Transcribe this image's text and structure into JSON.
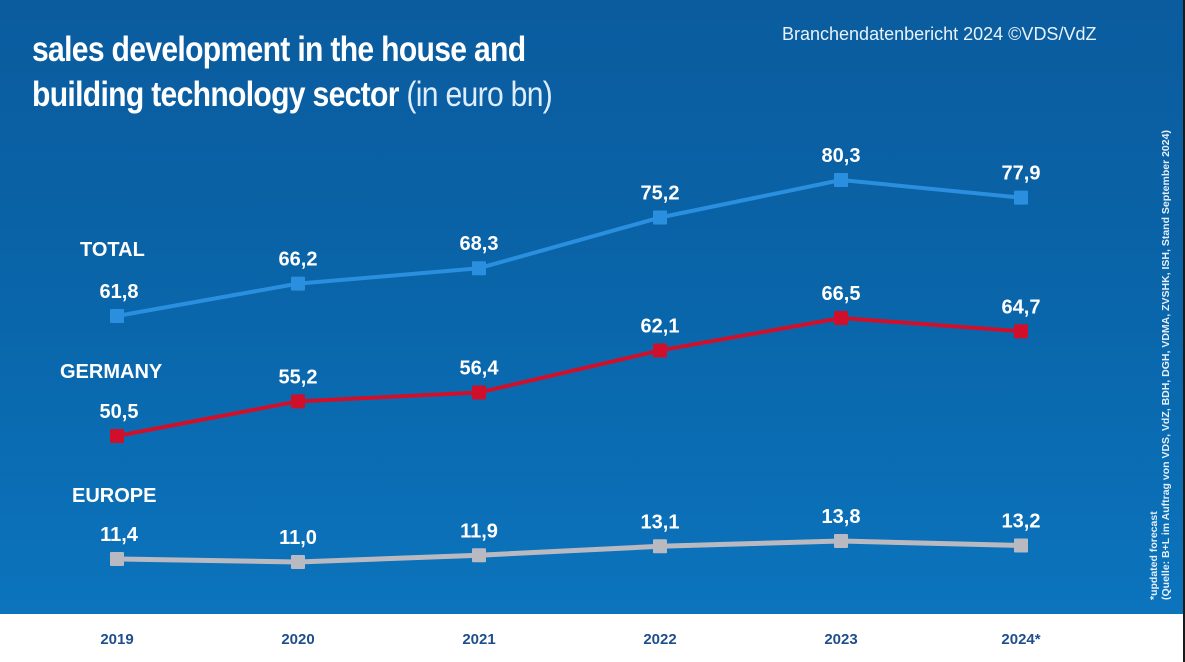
{
  "header": {
    "title_bold_line1": "sales development in the house and",
    "title_bold_line2": "building technology sector",
    "title_unit": "(in euro bn)",
    "source": "Branchendatenbericht 2024 ©VDS/VdZ"
  },
  "footnotes": {
    "forecast_note": "*updated forecast",
    "source_note": "(Quelle: B+L im Auftrag von VDS, VdZ, BDH, DGH, VDMA, ZVSHK, ISH, Stand September 2024)"
  },
  "colors": {
    "background_top": "#0a5c9e",
    "background_bottom": "#0b74bd",
    "total": "#2b8fe0",
    "germany": "#d0102b",
    "europe": "#b9b9c2",
    "axis_label": "#1f4e8c"
  },
  "chart_data": {
    "type": "line",
    "title": "sales development in the house and building technology sector (in euro bn)",
    "xlabel": "",
    "ylabel": "euro bn",
    "categories": [
      "2019",
      "2020",
      "2021",
      "2022",
      "2023",
      "2024*"
    ],
    "grid": false,
    "legend": "inline-left",
    "series": [
      {
        "name": "TOTAL",
        "values": [
          61.8,
          66.2,
          68.3,
          75.2,
          80.3,
          77.9
        ],
        "labels": [
          "61,8",
          "66,2",
          "68,3",
          "75,2",
          "80,3",
          "77,9"
        ]
      },
      {
        "name": "GERMANY",
        "values": [
          50.5,
          55.2,
          56.4,
          62.1,
          66.5,
          64.7
        ],
        "labels": [
          "50,5",
          "55,2",
          "56,4",
          "62,1",
          "66,5",
          "64,7"
        ]
      },
      {
        "name": "EUROPE",
        "values": [
          11.4,
          11.0,
          11.9,
          13.1,
          13.8,
          13.2
        ],
        "labels": [
          "11,4",
          "11,0",
          "11,9",
          "13,1",
          "13,8",
          "13,2"
        ]
      }
    ]
  }
}
